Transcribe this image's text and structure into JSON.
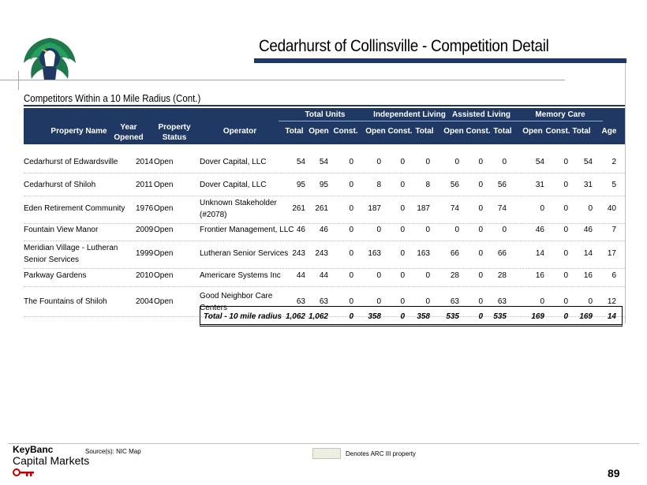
{
  "title": "Cedarhurst of Collinsville - Competition Detail",
  "subtitle": "Competitors Within a 10 Mile Radius (Cont.)",
  "groups": {
    "total_units": "Total Units",
    "independent_living": "Independent Living",
    "assisted_living": "Assisted Living",
    "memory_care": "Memory Care"
  },
  "columns": {
    "property_name": "Property Name",
    "year_l1": "Year",
    "year_l2": "Opened",
    "status_l1": "Property",
    "status_l2": "Status",
    "operator": "Operator",
    "tu_total": "Total",
    "tu_open": "Open",
    "tu_const": "Const.",
    "il_open": "Open",
    "il_const": "Const.",
    "il_total": "Total",
    "al_open": "Open",
    "al_const": "Const.",
    "al_total": "Total",
    "mc_open": "Open",
    "mc_const": "Const.",
    "mc_total": "Total",
    "age": "Age"
  },
  "rows": [
    {
      "name": "Cedarhurst of Edwardsville",
      "year": "2014",
      "status": "Open",
      "operator": "Dover Capital, LLC",
      "v": [
        "54",
        "54",
        "0",
        "0",
        "0",
        "0",
        "0",
        "0",
        "0",
        "54",
        "0",
        "54",
        "2"
      ]
    },
    {
      "name": "Cedarhurst of Shiloh",
      "year": "2011",
      "status": "Open",
      "operator": "Dover Capital, LLC",
      "v": [
        "95",
        "95",
        "0",
        "8",
        "0",
        "8",
        "56",
        "0",
        "56",
        "31",
        "0",
        "31",
        "5"
      ]
    },
    {
      "name": "Eden Retirement Community",
      "year": "1976",
      "status": "Open",
      "operator": "Unknown Stakeholder (#2078)",
      "v": [
        "261",
        "261",
        "0",
        "187",
        "0",
        "187",
        "74",
        "0",
        "74",
        "0",
        "0",
        "0",
        "40"
      ]
    },
    {
      "name": "Fountain View Manor",
      "year": "2009",
      "status": "Open",
      "operator": "Frontier Management, LLC",
      "v": [
        "46",
        "46",
        "0",
        "0",
        "0",
        "0",
        "0",
        "0",
        "0",
        "46",
        "0",
        "46",
        "7"
      ]
    },
    {
      "name": "Meridian Village - Lutheran Senior Services",
      "year": "1999",
      "status": "Open",
      "operator": "Lutheran Senior Services",
      "v": [
        "243",
        "243",
        "0",
        "163",
        "0",
        "163",
        "66",
        "0",
        "66",
        "14",
        "0",
        "14",
        "17"
      ]
    },
    {
      "name": "Parkway Gardens",
      "year": "2010",
      "status": "Open",
      "operator": "Americare Systems Inc",
      "v": [
        "44",
        "44",
        "0",
        "0",
        "0",
        "0",
        "28",
        "0",
        "28",
        "16",
        "0",
        "16",
        "6"
      ]
    },
    {
      "name": "The Fountains of Shiloh",
      "year": "2004",
      "status": "Open",
      "operator": "Good Neighbor Care Centers",
      "v": [
        "63",
        "63",
        "0",
        "0",
        "0",
        "0",
        "63",
        "0",
        "63",
        "0",
        "0",
        "0",
        "12"
      ]
    }
  ],
  "total": {
    "label": "Total - 10 mile radius",
    "v": [
      "1,062",
      "1,062",
      "0",
      "358",
      "0",
      "358",
      "535",
      "0",
      "535",
      "169",
      "0",
      "169",
      "14"
    ]
  },
  "footer": {
    "brand_line1": "KeyBanc",
    "brand_line2": "Capital Markets",
    "source": "Source(s): NIC Map",
    "legend": "Denotes ARC III property",
    "legend_color": "#ebf1de",
    "page": "89"
  },
  "colors": {
    "header_bg": "#1f3864"
  }
}
